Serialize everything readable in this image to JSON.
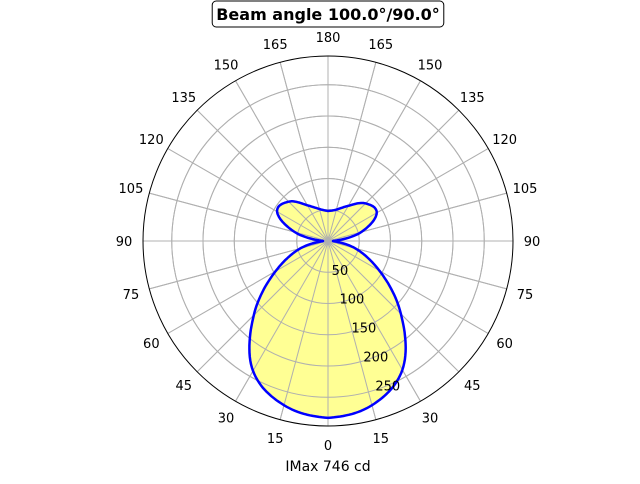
{
  "chart_data": {
    "type": "polar-line",
    "title": "Beam angle 100.0°/90.0°",
    "xlabel": "IMax 746 cd",
    "radial_ticks": [
      50,
      100,
      150,
      200,
      250
    ],
    "rlim": [
      0,
      296
    ],
    "angle_tick_labels": [
      "0",
      "15",
      "30",
      "45",
      "60",
      "75",
      "90",
      "105",
      "120",
      "135",
      "150",
      "165",
      "180"
    ],
    "grid": true,
    "line_color": "#0000ff",
    "fill_color": "#ffff88",
    "series": [
      {
        "angles": [
          0,
          15,
          30,
          45,
          60,
          75,
          90,
          105,
          120,
          135,
          150,
          165,
          180
        ],
        "right": [
          283,
          272,
          238,
          165,
          95,
          45,
          8,
          55,
          90,
          85,
          65,
          52,
          48
        ],
        "left": [
          283,
          272,
          240,
          168,
          97,
          46,
          8,
          55,
          94,
          89,
          66,
          53,
          48
        ]
      }
    ]
  }
}
